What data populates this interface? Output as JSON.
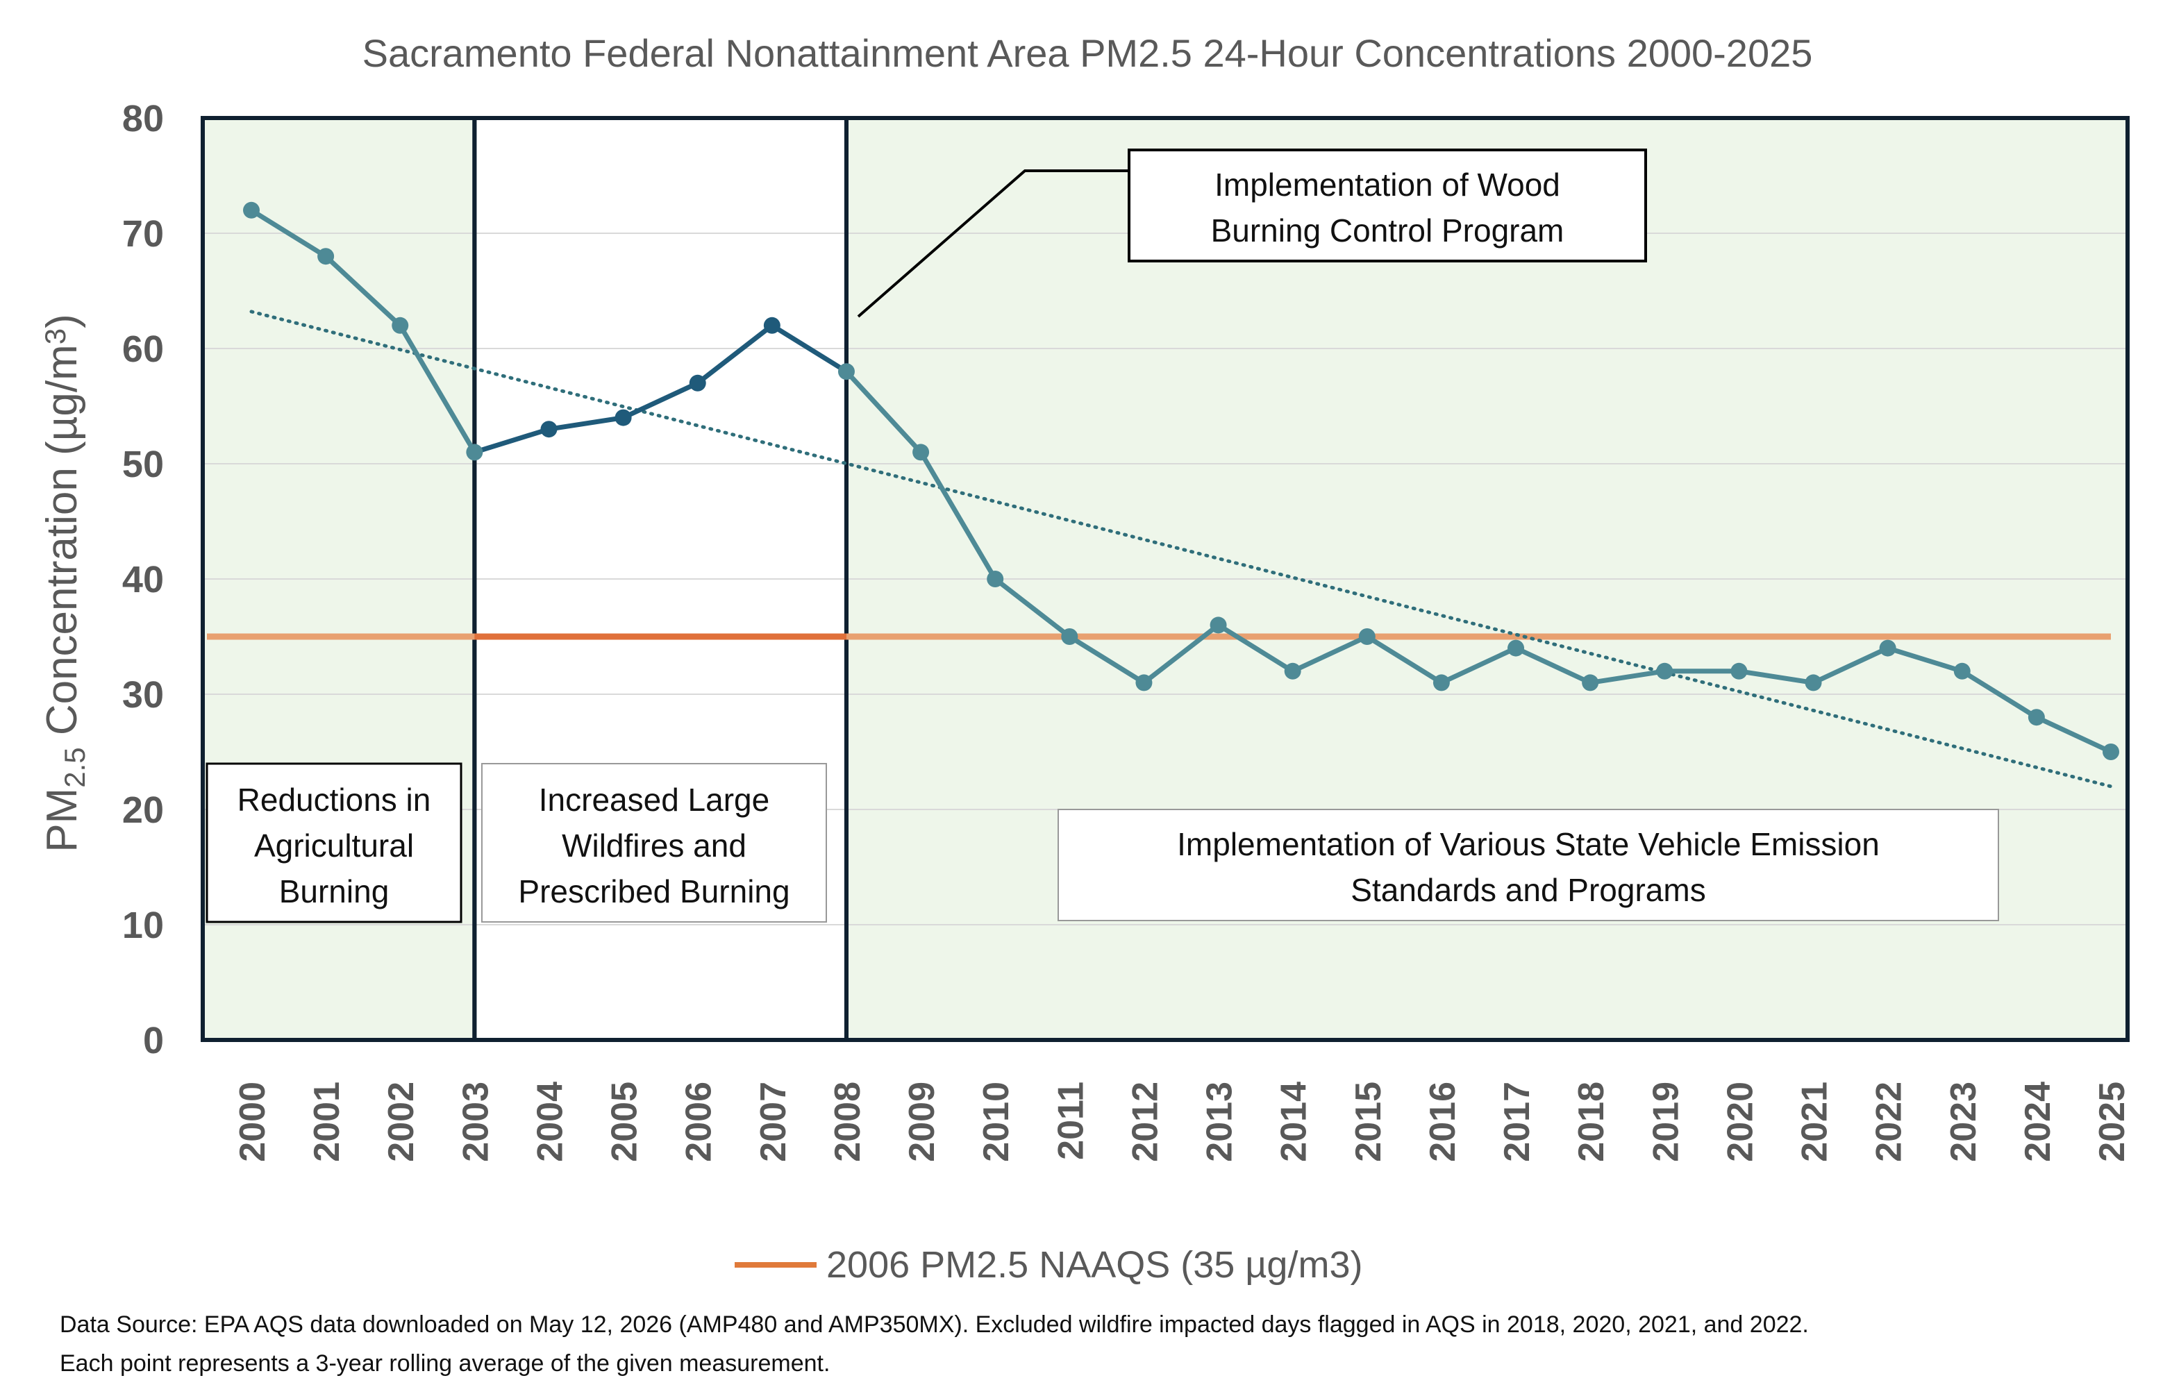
{
  "chart_data": {
    "type": "line",
    "title": "Sacramento Federal Nonattainment Area PM2.5 24-Hour Concentrations 2000-2025",
    "ylabel": "PM2.5 Concentration (µg/m3)",
    "ylim": [
      0,
      80
    ],
    "yticks": [
      "0",
      "10",
      "20",
      "30",
      "40",
      "50",
      "60",
      "70",
      "80"
    ],
    "grid": true,
    "categories": [
      "2000",
      "2001",
      "2002",
      "2003",
      "2004",
      "2005",
      "2006",
      "2007",
      "2008",
      "2009",
      "2010",
      "2011",
      "2012",
      "2013",
      "2014",
      "2015",
      "2016",
      "2017",
      "2018",
      "2019",
      "2020",
      "2021",
      "2022",
      "2023",
      "2024",
      "2025"
    ],
    "series": [
      {
        "values": [
          72,
          68,
          62,
          51,
          53,
          54,
          57,
          62,
          58,
          51,
          40,
          35,
          31,
          36,
          32,
          35,
          31,
          34,
          31,
          32,
          32,
          31,
          34,
          32,
          28,
          25
        ],
        "color": "#4e8a96",
        "highlight_color": "#1f5a7a",
        "highlight_range": [
          "2003",
          "2008"
        ]
      }
    ],
    "trendline": {
      "start": 63.2,
      "end": 22.0,
      "color": "#2f6e7a",
      "style": "dotted"
    },
    "reference_line": {
      "name": "2006 PM2.5 NAAQS (35 µg/m3)",
      "value": 35,
      "color": "#e8a070",
      "highlight_color": "#e0703a"
    },
    "legend": {
      "position": "bottom",
      "label": "2006 PM2.5 NAAQS (35 µg/m3)",
      "color": "#e07a3a"
    },
    "periods": [
      {
        "from": "2000",
        "to": "2003",
        "fill": "#eef6ea"
      },
      {
        "from": "2003",
        "to": "2008",
        "fill": "#ffffff"
      },
      {
        "from": "2008",
        "to": "2025",
        "fill": "#eef6ea"
      }
    ],
    "annotations": [
      {
        "lines": [
          "Reductions in",
          "Agricultural",
          "Burning"
        ]
      },
      {
        "lines": [
          "Increased Large",
          "Wildfires and",
          "Prescribed Burning"
        ]
      },
      {
        "lines": [
          "Implementation of  Wood",
          "Burning Control Program"
        ]
      },
      {
        "lines": [
          "Implementation of  Various State Vehicle Emission",
          "Standards and Programs"
        ]
      }
    ]
  },
  "source": {
    "line1": "Data Source: EPA AQS data downloaded on May 12, 2026 (AMP480 and AMP350MX). Excluded wildfire impacted days flagged in AQS in 2018, 2020, 2021, and 2022.",
    "line2": "Each point represents a 3-year rolling average of the given measurement."
  }
}
